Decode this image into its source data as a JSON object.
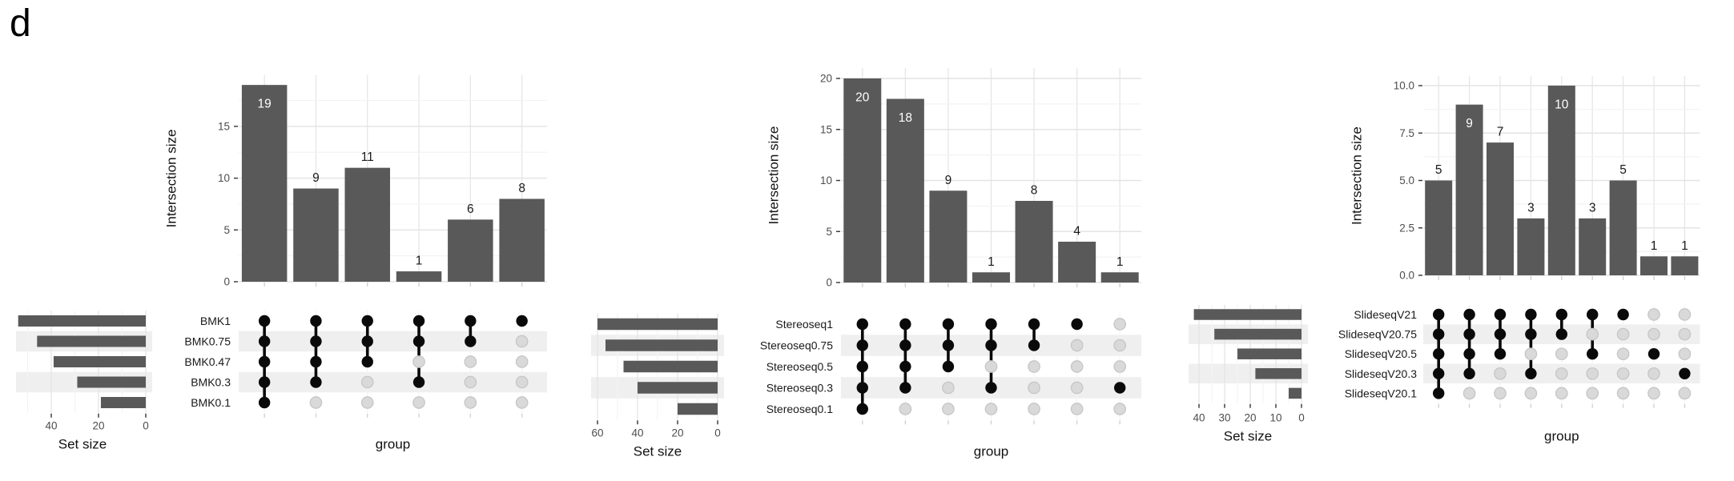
{
  "figure_label": "d",
  "colors": {
    "bar": "#595959",
    "dot_filled": "#0a0a0a",
    "dot_empty_fill": "#d9d9d9",
    "dot_empty_stroke": "#c6c6c6",
    "stripe": "#efefef",
    "grid_major": "#e4e4e4",
    "grid_minor": "#f3f3f3",
    "tick_label": "#4d4d4d",
    "axis_title": "#111111",
    "value_label_dark": "#1a1a1a",
    "value_label_light": "#ffffff",
    "axis_tick": "#333333",
    "faint_tick": "#d2d2d2"
  },
  "chart_data": [
    {
      "type": "upset",
      "name": "BMK",
      "intersection": {
        "ylabel": "Intersection size",
        "xlabel": "group",
        "values": [
          19,
          9,
          11,
          1,
          6,
          8
        ],
        "bar_labels": [
          "19",
          "9",
          "11",
          "1",
          "6",
          "8"
        ],
        "label_inside": [
          true,
          false,
          false,
          false,
          false,
          false
        ],
        "yticks": [
          {
            "value": 0,
            "label": "0"
          },
          {
            "value": 5,
            "label": "5"
          },
          {
            "value": 10,
            "label": "10"
          },
          {
            "value": 15,
            "label": "15"
          }
        ],
        "ylim": [
          0,
          20
        ],
        "grid": true
      },
      "sets": [
        {
          "label": "BMK1",
          "size": 54
        },
        {
          "label": "BMK0.75",
          "size": 46
        },
        {
          "label": "BMK0.47",
          "size": 39
        },
        {
          "label": "BMK0.3",
          "size": 29
        },
        {
          "label": "BMK0.1",
          "size": 19
        }
      ],
      "set_size_axis": {
        "title": "Set size",
        "ticks": [
          {
            "value": 40,
            "label": "40"
          },
          {
            "value": 20,
            "label": "20"
          },
          {
            "value": 0,
            "label": "0"
          }
        ]
      },
      "memberships": [
        [
          1,
          1,
          1,
          1,
          1
        ],
        [
          1,
          1,
          1,
          1,
          0
        ],
        [
          1,
          1,
          1,
          0,
          0
        ],
        [
          1,
          1,
          0,
          1,
          0
        ],
        [
          1,
          1,
          0,
          0,
          0
        ],
        [
          1,
          0,
          0,
          0,
          0
        ]
      ]
    },
    {
      "type": "upset",
      "name": "Stereoseq",
      "intersection": {
        "ylabel": "Intersection size",
        "xlabel": "group",
        "values": [
          20,
          18,
          9,
          1,
          8,
          4,
          1
        ],
        "bar_labels": [
          "20",
          "18",
          "9",
          "1",
          "8",
          "4",
          "1"
        ],
        "label_inside": [
          true,
          true,
          false,
          false,
          false,
          false,
          false
        ],
        "yticks": [
          {
            "value": 0,
            "label": "0"
          },
          {
            "value": 5,
            "label": "5"
          },
          {
            "value": 10,
            "label": "10"
          },
          {
            "value": 15,
            "label": "15"
          },
          {
            "value": 20,
            "label": "20"
          }
        ],
        "ylim": [
          0,
          20
        ],
        "grid": true
      },
      "sets": [
        {
          "label": "Stereoseq1",
          "size": 60
        },
        {
          "label": "Stereoseq0.75",
          "size": 56
        },
        {
          "label": "Stereoseq0.5",
          "size": 47
        },
        {
          "label": "Stereoseq0.3",
          "size": 40
        },
        {
          "label": "Stereoseq0.1",
          "size": 20
        }
      ],
      "set_size_axis": {
        "title": "Set size",
        "ticks": [
          {
            "value": 60,
            "label": "60"
          },
          {
            "value": 40,
            "label": "40"
          },
          {
            "value": 20,
            "label": "20"
          },
          {
            "value": 0,
            "label": "0"
          }
        ]
      },
      "memberships": [
        [
          1,
          1,
          1,
          1,
          1
        ],
        [
          1,
          1,
          1,
          1,
          0
        ],
        [
          1,
          1,
          1,
          0,
          0
        ],
        [
          1,
          1,
          0,
          1,
          0
        ],
        [
          1,
          1,
          0,
          0,
          0
        ],
        [
          1,
          0,
          0,
          0,
          0
        ],
        [
          0,
          0,
          0,
          1,
          0
        ]
      ]
    },
    {
      "type": "upset",
      "name": "SlideseqV2",
      "intersection": {
        "ylabel": "Intersection size",
        "xlabel": "group",
        "values": [
          5,
          9,
          7,
          3,
          10,
          3,
          5,
          1,
          1
        ],
        "bar_labels": [
          "5",
          "9",
          "7",
          "3",
          "10",
          "3",
          "5",
          "1",
          "1"
        ],
        "label_inside": [
          false,
          true,
          false,
          false,
          true,
          false,
          false,
          false,
          false
        ],
        "yticks": [
          {
            "value": 0,
            "label": "0.0"
          },
          {
            "value": 2.5,
            "label": "2.5"
          },
          {
            "value": 5,
            "label": "5.0"
          },
          {
            "value": 7.5,
            "label": "7.5"
          },
          {
            "value": 10,
            "label": "10.0"
          }
        ],
        "ylim": [
          0,
          10
        ],
        "grid": true
      },
      "sets": [
        {
          "label": "SlideseqV21",
          "size": 42
        },
        {
          "label": "SlideseqV20.75",
          "size": 34
        },
        {
          "label": "SlideseqV20.5",
          "size": 25
        },
        {
          "label": "SlideseqV20.3",
          "size": 18
        },
        {
          "label": "SlideseqV20.1",
          "size": 5
        }
      ],
      "set_size_axis": {
        "title": "Set size",
        "ticks": [
          {
            "value": 40,
            "label": "40"
          },
          {
            "value": 30,
            "label": "30"
          },
          {
            "value": 20,
            "label": "20"
          },
          {
            "value": 10,
            "label": "10"
          },
          {
            "value": 0,
            "label": "0"
          }
        ]
      },
      "memberships": [
        [
          1,
          1,
          1,
          1,
          1
        ],
        [
          1,
          1,
          1,
          1,
          0
        ],
        [
          1,
          1,
          1,
          0,
          0
        ],
        [
          1,
          1,
          0,
          1,
          0
        ],
        [
          1,
          1,
          0,
          0,
          0
        ],
        [
          1,
          0,
          1,
          0,
          0
        ],
        [
          1,
          0,
          0,
          0,
          0
        ],
        [
          0,
          0,
          1,
          0,
          0
        ],
        [
          0,
          0,
          0,
          1,
          0
        ]
      ]
    }
  ]
}
